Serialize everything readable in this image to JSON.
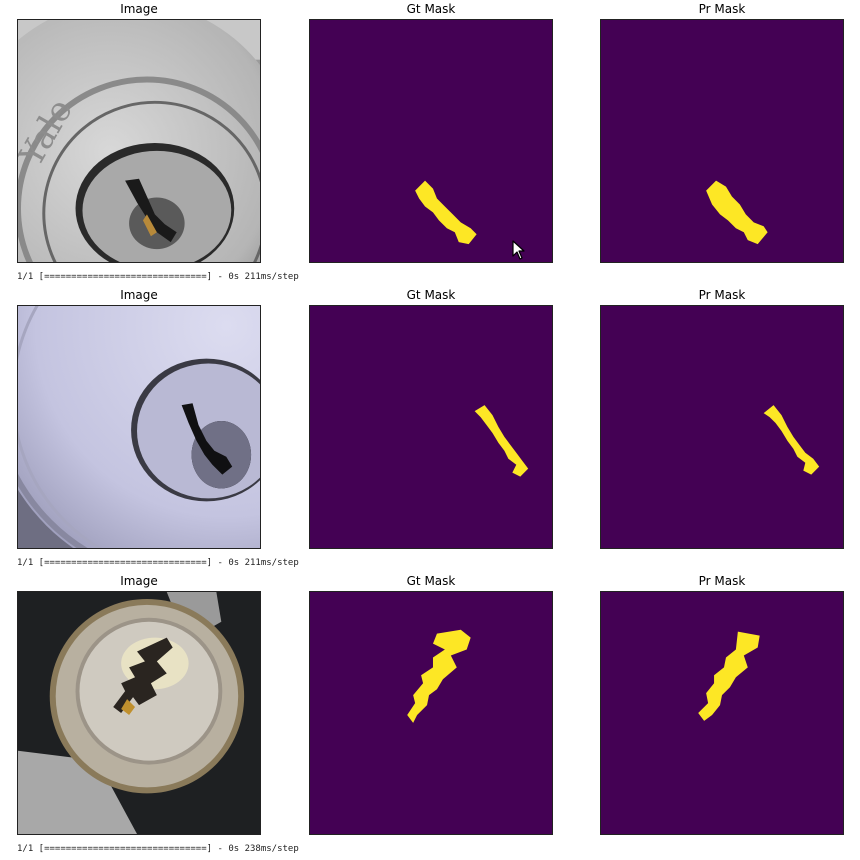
{
  "rows": [
    {
      "titles": {
        "image": "Image",
        "gt": "Gt Mask",
        "pr": "Pr Mask"
      },
      "log": "1/1 [==============================] - 0s 211ms/step"
    },
    {
      "titles": {
        "image": "Image",
        "gt": "Gt Mask",
        "pr": "Pr Mask"
      },
      "log": "1/1 [==============================] - 0s 211ms/step"
    },
    {
      "titles": {
        "image": "Image",
        "gt": "Gt Mask",
        "pr": "Pr Mask"
      },
      "log": "1/1 [==============================] - 0s 238ms/step"
    }
  ],
  "photo1_brand": "Yale",
  "colors": {
    "mask_bg": "#440154",
    "mask_fg": "#fde725"
  }
}
